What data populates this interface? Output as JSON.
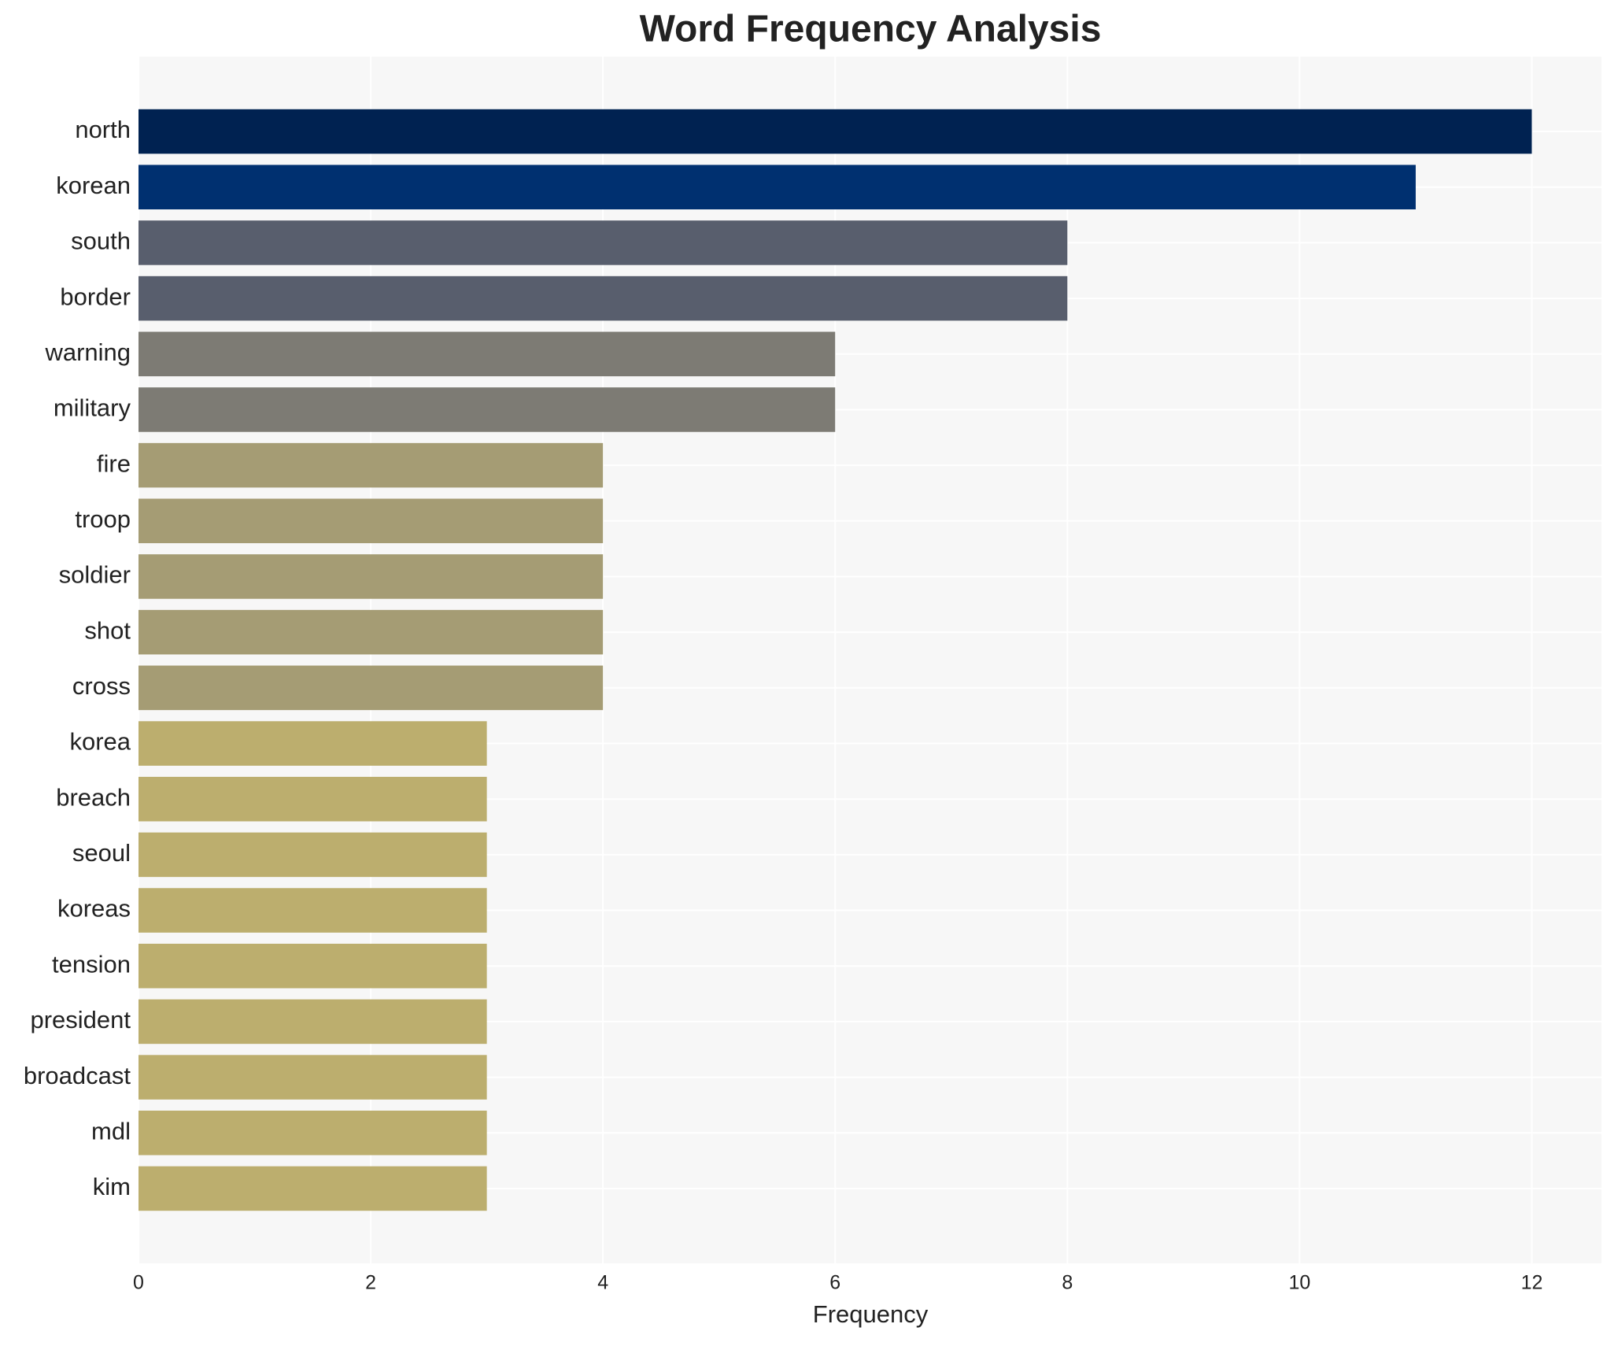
{
  "chart_data": {
    "type": "bar",
    "orientation": "horizontal",
    "title": "Word Frequency Analysis",
    "x_label": "Frequency",
    "categories": [
      "north",
      "korean",
      "south",
      "border",
      "warning",
      "military",
      "fire",
      "troop",
      "soldier",
      "shot",
      "cross",
      "korea",
      "breach",
      "seoul",
      "koreas",
      "tension",
      "president",
      "broadcast",
      "mdl",
      "kim"
    ],
    "values": [
      12,
      11,
      8,
      8,
      6,
      6,
      4,
      4,
      4,
      4,
      4,
      3,
      3,
      3,
      3,
      3,
      3,
      3,
      3,
      3
    ],
    "colors": [
      "#002251",
      "#003070",
      "#585e6d",
      "#585e6d",
      "#7d7b74",
      "#7d7b74",
      "#a59c74",
      "#a59c74",
      "#a59c74",
      "#a59c74",
      "#a59c74",
      "#bcae6e",
      "#bcae6e",
      "#bcae6e",
      "#bcae6e",
      "#bcae6e",
      "#bcae6e",
      "#bcae6e",
      "#bcae6e",
      "#bcae6e"
    ],
    "xlim": [
      0,
      12.6
    ],
    "xticks": [
      0,
      2,
      4,
      6,
      8,
      10,
      12
    ],
    "grid": true
  }
}
